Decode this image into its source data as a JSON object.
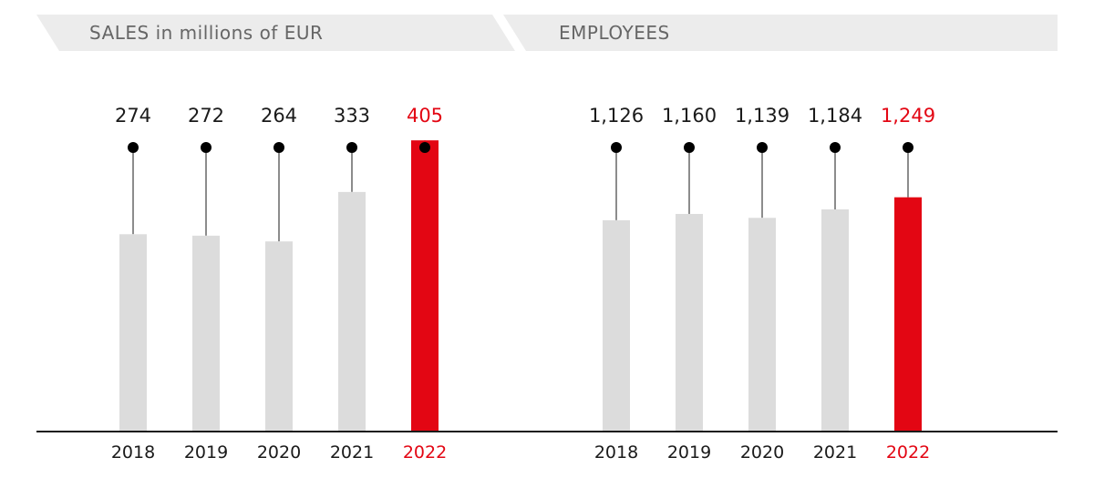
{
  "colors": {
    "bar": "#dcdcdc",
    "highlight": "#e30613",
    "text": "#1a1a1a",
    "header_bg": "#ececec",
    "header_text": "#666666"
  },
  "chart_data": [
    {
      "type": "bar",
      "title": "SALES in millions of EUR",
      "categories": [
        "2018",
        "2019",
        "2020",
        "2021",
        "2022"
      ],
      "values": [
        274,
        272,
        264,
        333,
        405
      ],
      "value_labels": [
        "274",
        "272",
        "264",
        "333",
        "405"
      ],
      "highlight_index": 4,
      "ylim": [
        0,
        550
      ]
    },
    {
      "type": "bar",
      "title": "EMPLOYEES",
      "categories": [
        "2018",
        "2019",
        "2020",
        "2021",
        "2022"
      ],
      "values": [
        1126,
        1160,
        1139,
        1184,
        1249
      ],
      "value_labels": [
        "1,126",
        "1,160",
        "1,139",
        "1,184",
        "1,249"
      ],
      "highlight_index": 4,
      "ylim": [
        0,
        2110
      ]
    }
  ]
}
